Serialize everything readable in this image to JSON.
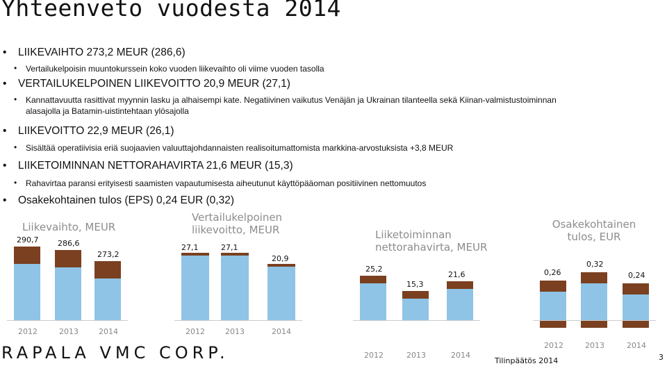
{
  "title": "Yhteenveto vuodesta 2014",
  "bullets": [
    {
      "level": 1,
      "text": "LIIKEVAIHTO 273,2 MEUR (286,6)"
    },
    {
      "level": 2,
      "text": "Vertailukelpoisin muuntokurssein koko vuoden liikevaihto oli viime vuoden tasolla"
    },
    {
      "level": 1,
      "text": "VERTAILUKELPOINEN LIIKEVOITTO 20,9 MEUR (27,1)"
    },
    {
      "level": 2,
      "text": "Kannattavuutta rasittivat myynnin lasku ja alhaisempi kate. Negatiivinen vaikutus Venäjän ja Ukrainan tilanteella sekä Kiinan-valmistustoiminnan"
    },
    {
      "level": 2,
      "text": "alasajolla ja Batamin-uistintehtaan ylösajolla",
      "continuation": true
    },
    {
      "level": 1,
      "text": "LIIKEVOITTO 22,9 MEUR (26,1)"
    },
    {
      "level": 2,
      "text": "Sisältää operatiivisia eriä suojaavien valuuttajohdannaisten realisoitumattomista markkina-arvostuksista +3,8 MEUR"
    },
    {
      "level": 1,
      "text": "LIIKETOIMINNAN NETTORAHAVIRTA 21,6 MEUR (15,3)"
    },
    {
      "level": 2,
      "text": "Rahavirtaa paransi erityisesti saamisten vapautumisesta aiheutunut käyttöpääoman positiivinen nettomuutos"
    },
    {
      "level": 1,
      "text": "Osakekohtainen tulos (EPS) 0,24 EUR (0,32)"
    }
  ],
  "chart_data": [
    {
      "type": "bar",
      "title": "Liikevaihto, MEUR",
      "categories": [
        "2012",
        "2013",
        "2014"
      ],
      "values": [
        290.7,
        286.6,
        273.2
      ],
      "value_labels": [
        "290,7",
        "286,6",
        "273,2"
      ]
    },
    {
      "type": "bar",
      "title": "Vertailukelpoinen liikevoitto, MEUR",
      "title_lines": [
        "Vertailukelpoinen",
        "liikevoitto, MEUR"
      ],
      "categories": [
        "2012",
        "2013",
        "2014"
      ],
      "values": [
        27.1,
        27.1,
        20.9
      ],
      "value_labels": [
        "27,1",
        "27,1",
        "20,9"
      ]
    },
    {
      "type": "bar",
      "title": "Liiketoiminnan nettorahavirta, MEUR",
      "title_lines": [
        "Liiketoiminnan",
        "nettorahavirta, MEUR"
      ],
      "categories": [
        "2012",
        "2013",
        "2014"
      ],
      "values": [
        25.2,
        15.3,
        21.6
      ],
      "value_labels": [
        "25,2",
        "15,3",
        "21,6"
      ]
    },
    {
      "type": "bar",
      "title": "Osakekohtainen tulos, EUR",
      "title_lines": [
        "Osakekohtainen",
        "tulos, EUR"
      ],
      "categories": [
        "2012",
        "2013",
        "2014"
      ],
      "values": [
        0.26,
        0.32,
        0.24
      ],
      "value_labels": [
        "0,26",
        "0,32",
        "0,24"
      ]
    }
  ],
  "colors": {
    "bar_cap": "#7a4020",
    "bar_body": "#8fc4e6",
    "panel_title": "#8c8c8c"
  },
  "logo": "RAPALA VMC CORP.",
  "footer": {
    "doc_label": "Tilinpäätös 2014",
    "page_number": "3"
  }
}
